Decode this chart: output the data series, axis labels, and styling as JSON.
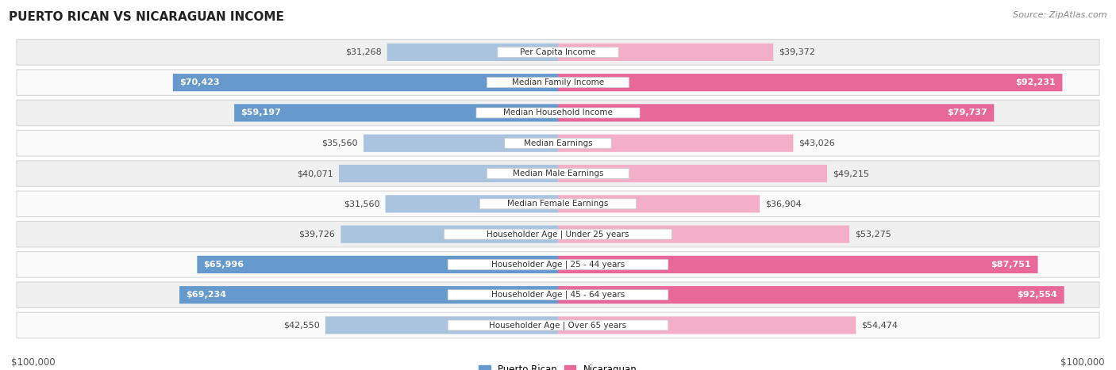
{
  "title": "PUERTO RICAN VS NICARAGUAN INCOME",
  "source": "Source: ZipAtlas.com",
  "categories": [
    "Per Capita Income",
    "Median Family Income",
    "Median Household Income",
    "Median Earnings",
    "Median Male Earnings",
    "Median Female Earnings",
    "Householder Age | Under 25 years",
    "Householder Age | 25 - 44 years",
    "Householder Age | 45 - 64 years",
    "Householder Age | Over 65 years"
  ],
  "puerto_rican": [
    31268,
    70423,
    59197,
    35560,
    40071,
    31560,
    39726,
    65996,
    69234,
    42550
  ],
  "nicaraguan": [
    39372,
    92231,
    79737,
    43026,
    49215,
    36904,
    53275,
    87751,
    92554,
    54474
  ],
  "max_value": 100000,
  "bar_color_puerto_rican_light": "#aac4e0",
  "bar_color_puerto_rican_dark": "#6699cc",
  "bar_color_nicaraguan_light": "#f4afc8",
  "bar_color_nicaraguan_dark": "#e8689a",
  "background_color": "#ffffff",
  "row_bg_odd": "#f0f0f0",
  "row_bg_even": "#fafafa",
  "title_fontsize": 11,
  "source_fontsize": 8,
  "bar_label_fontsize": 8,
  "category_fontsize": 7.5,
  "legend_fontsize": 8.5,
  "xlabel_left": "$100,000",
  "xlabel_right": "$100,000",
  "pr_inside_threshold": 48000,
  "ni_inside_threshold": 60000
}
